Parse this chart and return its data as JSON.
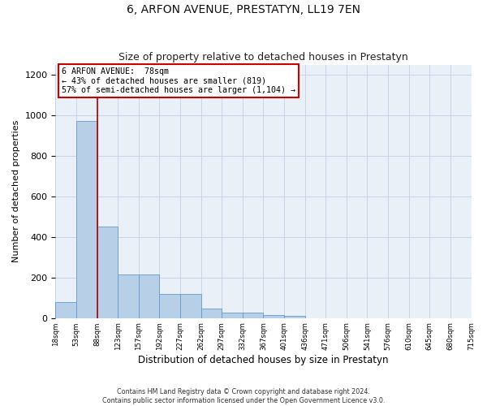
{
  "title": "6, ARFON AVENUE, PRESTATYN, LL19 7EN",
  "subtitle": "Size of property relative to detached houses in Prestatyn",
  "xlabel": "Distribution of detached houses by size in Prestatyn",
  "ylabel": "Number of detached properties",
  "bar_values": [
    80,
    970,
    450,
    215,
    215,
    120,
    120,
    48,
    25,
    25,
    15,
    10,
    0,
    0,
    0,
    0,
    0,
    0,
    0,
    0
  ],
  "tick_labels": [
    "18sqm",
    "53sqm",
    "88sqm",
    "123sqm",
    "157sqm",
    "192sqm",
    "227sqm",
    "262sqm",
    "297sqm",
    "332sqm",
    "367sqm",
    "401sqm",
    "436sqm",
    "471sqm",
    "506sqm",
    "541sqm",
    "576sqm",
    "610sqm",
    "645sqm",
    "680sqm",
    "715sqm"
  ],
  "bar_color": "#b8cfe8",
  "bar_edge_color": "#6699cc",
  "grid_color": "#c8d4e8",
  "background_color": "#eaf0f8",
  "vline_color": "#aa0000",
  "annotation_text": "6 ARFON AVENUE:  78sqm\n← 43% of detached houses are smaller (819)\n57% of semi-detached houses are larger (1,104) →",
  "annotation_box_color": "#ffffff",
  "annotation_box_edge_color": "#cc0000",
  "ylim": [
    0,
    1250
  ],
  "yticks": [
    0,
    200,
    400,
    600,
    800,
    1000,
    1200
  ],
  "footer_text": "Contains HM Land Registry data © Crown copyright and database right 2024.\nContains public sector information licensed under the Open Government Licence v3.0.",
  "title_fontsize": 10,
  "subtitle_fontsize": 9,
  "ylabel_fontsize": 8,
  "xlabel_fontsize": 8.5
}
